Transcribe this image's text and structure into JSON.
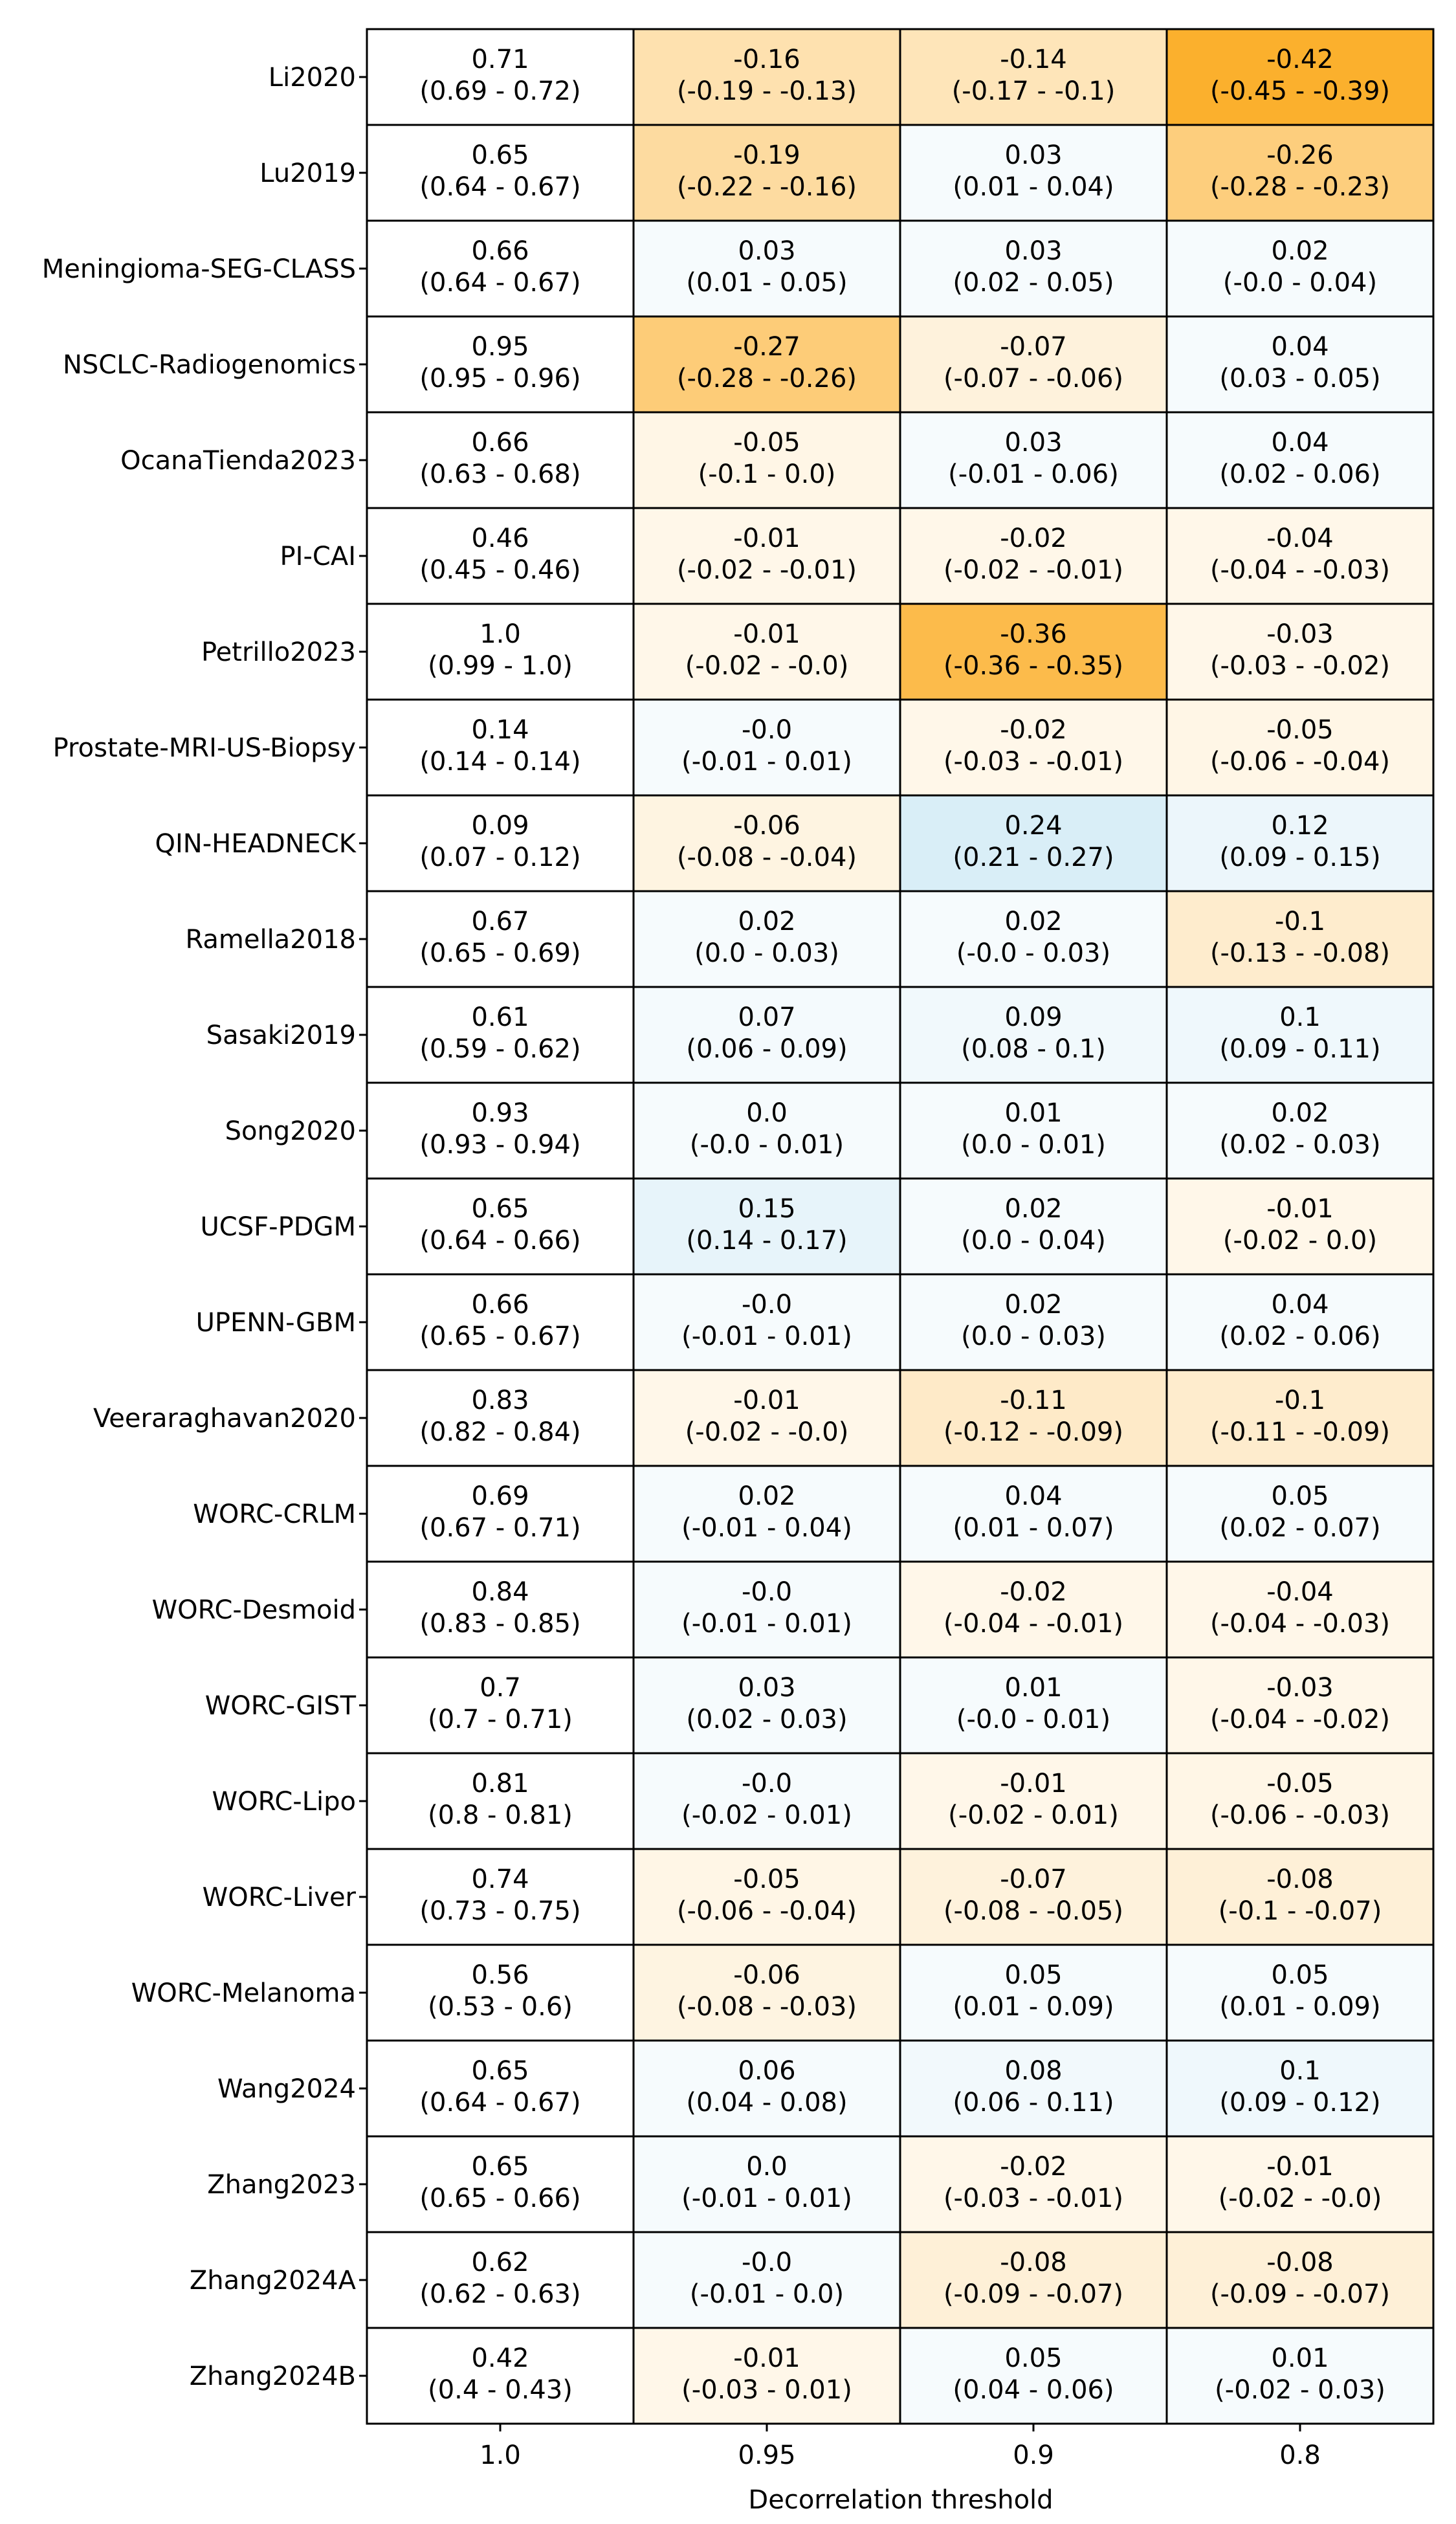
{
  "chart_data": {
    "type": "heatmap",
    "title": "",
    "xlabel": "Decorrelation threshold",
    "ylabel": "",
    "x_categories": [
      "1.0",
      "0.95",
      "0.9",
      "0.8"
    ],
    "y_categories": [
      "Li2020",
      "Lu2019",
      "Meningioma-SEG-CLASS",
      "NSCLC-Radiogenomics",
      "OcanaTienda2023",
      "PI-CAI",
      "Petrillo2023",
      "Prostate-MRI-US-Biopsy",
      "QIN-HEADNECK",
      "Ramella2018",
      "Sasaki2019",
      "Song2020",
      "UCSF-PDGM",
      "UPENN-GBM",
      "Veeraraghavan2020",
      "WORC-CRLM",
      "WORC-Desmoid",
      "WORC-GIST",
      "WORC-Lipo",
      "WORC-Liver",
      "WORC-Melanoma",
      "Wang2024",
      "Zhang2023",
      "Zhang2024A",
      "Zhang2024B"
    ],
    "color_scale": {
      "positive": "#b8dff0",
      "negative": "#fbaa1e",
      "baseline_column": "#ffffff",
      "abs_max": 0.45
    },
    "rows": [
      {
        "cells": [
          {
            "value": 0.71,
            "ci": "(0.69 - 0.72)",
            "label": "0.71"
          },
          {
            "value": -0.16,
            "ci": "(-0.19 - -0.13)",
            "label": "-0.16"
          },
          {
            "value": -0.14,
            "ci": "(-0.17 - -0.1)",
            "label": "-0.14"
          },
          {
            "value": -0.42,
            "ci": "(-0.45 - -0.39)",
            "label": "-0.42"
          }
        ]
      },
      {
        "cells": [
          {
            "value": 0.65,
            "ci": "(0.64 - 0.67)",
            "label": "0.65"
          },
          {
            "value": -0.19,
            "ci": "(-0.22 - -0.16)",
            "label": "-0.19"
          },
          {
            "value": 0.03,
            "ci": "(0.01 - 0.04)",
            "label": "0.03"
          },
          {
            "value": -0.26,
            "ci": "(-0.28 - -0.23)",
            "label": "-0.26"
          }
        ]
      },
      {
        "cells": [
          {
            "value": 0.66,
            "ci": "(0.64 - 0.67)",
            "label": "0.66"
          },
          {
            "value": 0.03,
            "ci": "(0.01 - 0.05)",
            "label": "0.03"
          },
          {
            "value": 0.03,
            "ci": "(0.02 - 0.05)",
            "label": "0.03"
          },
          {
            "value": 0.02,
            "ci": "(-0.0 - 0.04)",
            "label": "0.02"
          }
        ]
      },
      {
        "cells": [
          {
            "value": 0.95,
            "ci": "(0.95 - 0.96)",
            "label": "0.95"
          },
          {
            "value": -0.27,
            "ci": "(-0.28 - -0.26)",
            "label": "-0.27"
          },
          {
            "value": -0.07,
            "ci": "(-0.07 - -0.06)",
            "label": "-0.07"
          },
          {
            "value": 0.04,
            "ci": "(0.03 - 0.05)",
            "label": "0.04"
          }
        ]
      },
      {
        "cells": [
          {
            "value": 0.66,
            "ci": "(0.63 - 0.68)",
            "label": "0.66"
          },
          {
            "value": -0.05,
            "ci": "(-0.1 - 0.0)",
            "label": "-0.05"
          },
          {
            "value": 0.03,
            "ci": "(-0.01 - 0.06)",
            "label": "0.03"
          },
          {
            "value": 0.04,
            "ci": "(0.02 - 0.06)",
            "label": "0.04"
          }
        ]
      },
      {
        "cells": [
          {
            "value": 0.46,
            "ci": "(0.45 - 0.46)",
            "label": "0.46"
          },
          {
            "value": -0.01,
            "ci": "(-0.02 - -0.01)",
            "label": "-0.01"
          },
          {
            "value": -0.02,
            "ci": "(-0.02 - -0.01)",
            "label": "-0.02"
          },
          {
            "value": -0.04,
            "ci": "(-0.04 - -0.03)",
            "label": "-0.04"
          }
        ]
      },
      {
        "cells": [
          {
            "value": 1.0,
            "ci": "(0.99 - 1.0)",
            "label": "1.0"
          },
          {
            "value": -0.01,
            "ci": "(-0.02 - -0.0)",
            "label": "-0.01"
          },
          {
            "value": -0.36,
            "ci": "(-0.36 - -0.35)",
            "label": "-0.36"
          },
          {
            "value": -0.03,
            "ci": "(-0.03 - -0.02)",
            "label": "-0.03"
          }
        ]
      },
      {
        "cells": [
          {
            "value": 0.14,
            "ci": "(0.14 - 0.14)",
            "label": "0.14"
          },
          {
            "value": 0.0,
            "ci": "(-0.01 - 0.01)",
            "label": "-0.0"
          },
          {
            "value": -0.02,
            "ci": "(-0.03 - -0.01)",
            "label": "-0.02"
          },
          {
            "value": -0.05,
            "ci": "(-0.06 - -0.04)",
            "label": "-0.05"
          }
        ]
      },
      {
        "cells": [
          {
            "value": 0.09,
            "ci": "(0.07 - 0.12)",
            "label": "0.09"
          },
          {
            "value": -0.06,
            "ci": "(-0.08 - -0.04)",
            "label": "-0.06"
          },
          {
            "value": 0.24,
            "ci": "(0.21 - 0.27)",
            "label": "0.24"
          },
          {
            "value": 0.12,
            "ci": "(0.09 - 0.15)",
            "label": "0.12"
          }
        ]
      },
      {
        "cells": [
          {
            "value": 0.67,
            "ci": "(0.65 - 0.69)",
            "label": "0.67"
          },
          {
            "value": 0.02,
            "ci": "(0.0 - 0.03)",
            "label": "0.02"
          },
          {
            "value": 0.02,
            "ci": "(-0.0 - 0.03)",
            "label": "0.02"
          },
          {
            "value": -0.1,
            "ci": "(-0.13 - -0.08)",
            "label": "-0.1"
          }
        ]
      },
      {
        "cells": [
          {
            "value": 0.61,
            "ci": "(0.59 - 0.62)",
            "label": "0.61"
          },
          {
            "value": 0.07,
            "ci": "(0.06 - 0.09)",
            "label": "0.07"
          },
          {
            "value": 0.09,
            "ci": "(0.08 - 0.1)",
            "label": "0.09"
          },
          {
            "value": 0.1,
            "ci": "(0.09 - 0.11)",
            "label": "0.1"
          }
        ]
      },
      {
        "cells": [
          {
            "value": 0.93,
            "ci": "(0.93 - 0.94)",
            "label": "0.93"
          },
          {
            "value": 0.0,
            "ci": "(-0.0 - 0.01)",
            "label": "0.0"
          },
          {
            "value": 0.01,
            "ci": "(0.0 - 0.01)",
            "label": "0.01"
          },
          {
            "value": 0.02,
            "ci": "(0.02 - 0.03)",
            "label": "0.02"
          }
        ]
      },
      {
        "cells": [
          {
            "value": 0.65,
            "ci": "(0.64 - 0.66)",
            "label": "0.65"
          },
          {
            "value": 0.15,
            "ci": "(0.14 - 0.17)",
            "label": "0.15"
          },
          {
            "value": 0.02,
            "ci": "(0.0 - 0.04)",
            "label": "0.02"
          },
          {
            "value": -0.01,
            "ci": "(-0.02 - 0.0)",
            "label": "-0.01"
          }
        ]
      },
      {
        "cells": [
          {
            "value": 0.66,
            "ci": "(0.65 - 0.67)",
            "label": "0.66"
          },
          {
            "value": 0.0,
            "ci": "(-0.01 - 0.01)",
            "label": "-0.0"
          },
          {
            "value": 0.02,
            "ci": "(0.0 - 0.03)",
            "label": "0.02"
          },
          {
            "value": 0.04,
            "ci": "(0.02 - 0.06)",
            "label": "0.04"
          }
        ]
      },
      {
        "cells": [
          {
            "value": 0.83,
            "ci": "(0.82 - 0.84)",
            "label": "0.83"
          },
          {
            "value": -0.01,
            "ci": "(-0.02 - -0.0)",
            "label": "-0.01"
          },
          {
            "value": -0.11,
            "ci": "(-0.12 - -0.09)",
            "label": "-0.11"
          },
          {
            "value": -0.1,
            "ci": "(-0.11 - -0.09)",
            "label": "-0.1"
          }
        ]
      },
      {
        "cells": [
          {
            "value": 0.69,
            "ci": "(0.67 - 0.71)",
            "label": "0.69"
          },
          {
            "value": 0.02,
            "ci": "(-0.01 - 0.04)",
            "label": "0.02"
          },
          {
            "value": 0.04,
            "ci": "(0.01 - 0.07)",
            "label": "0.04"
          },
          {
            "value": 0.05,
            "ci": "(0.02 - 0.07)",
            "label": "0.05"
          }
        ]
      },
      {
        "cells": [
          {
            "value": 0.84,
            "ci": "(0.83 - 0.85)",
            "label": "0.84"
          },
          {
            "value": 0.0,
            "ci": "(-0.01 - 0.01)",
            "label": "-0.0"
          },
          {
            "value": -0.02,
            "ci": "(-0.04 - -0.01)",
            "label": "-0.02"
          },
          {
            "value": -0.04,
            "ci": "(-0.04 - -0.03)",
            "label": "-0.04"
          }
        ]
      },
      {
        "cells": [
          {
            "value": 0.7,
            "ci": "(0.7 - 0.71)",
            "label": "0.7"
          },
          {
            "value": 0.03,
            "ci": "(0.02 - 0.03)",
            "label": "0.03"
          },
          {
            "value": 0.01,
            "ci": "(-0.0 - 0.01)",
            "label": "0.01"
          },
          {
            "value": -0.03,
            "ci": "(-0.04 - -0.02)",
            "label": "-0.03"
          }
        ]
      },
      {
        "cells": [
          {
            "value": 0.81,
            "ci": "(0.8 - 0.81)",
            "label": "0.81"
          },
          {
            "value": 0.0,
            "ci": "(-0.02 - 0.01)",
            "label": "-0.0"
          },
          {
            "value": -0.01,
            "ci": "(-0.02 - 0.01)",
            "label": "-0.01"
          },
          {
            "value": -0.05,
            "ci": "(-0.06 - -0.03)",
            "label": "-0.05"
          }
        ]
      },
      {
        "cells": [
          {
            "value": 0.74,
            "ci": "(0.73 - 0.75)",
            "label": "0.74"
          },
          {
            "value": -0.05,
            "ci": "(-0.06 - -0.04)",
            "label": "-0.05"
          },
          {
            "value": -0.07,
            "ci": "(-0.08 - -0.05)",
            "label": "-0.07"
          },
          {
            "value": -0.08,
            "ci": "(-0.1 - -0.07)",
            "label": "-0.08"
          }
        ]
      },
      {
        "cells": [
          {
            "value": 0.56,
            "ci": "(0.53 - 0.6)",
            "label": "0.56"
          },
          {
            "value": -0.06,
            "ci": "(-0.08 - -0.03)",
            "label": "-0.06"
          },
          {
            "value": 0.05,
            "ci": "(0.01 - 0.09)",
            "label": "0.05"
          },
          {
            "value": 0.05,
            "ci": "(0.01 - 0.09)",
            "label": "0.05"
          }
        ]
      },
      {
        "cells": [
          {
            "value": 0.65,
            "ci": "(0.64 - 0.67)",
            "label": "0.65"
          },
          {
            "value": 0.06,
            "ci": "(0.04 - 0.08)",
            "label": "0.06"
          },
          {
            "value": 0.08,
            "ci": "(0.06 - 0.11)",
            "label": "0.08"
          },
          {
            "value": 0.1,
            "ci": "(0.09 - 0.12)",
            "label": "0.1"
          }
        ]
      },
      {
        "cells": [
          {
            "value": 0.65,
            "ci": "(0.65 - 0.66)",
            "label": "0.65"
          },
          {
            "value": 0.0,
            "ci": "(-0.01 - 0.01)",
            "label": "0.0"
          },
          {
            "value": -0.02,
            "ci": "(-0.03 - -0.01)",
            "label": "-0.02"
          },
          {
            "value": -0.01,
            "ci": "(-0.02 - -0.0)",
            "label": "-0.01"
          }
        ]
      },
      {
        "cells": [
          {
            "value": 0.62,
            "ci": "(0.62 - 0.63)",
            "label": "0.62"
          },
          {
            "value": 0.0,
            "ci": "(-0.01 - 0.0)",
            "label": "-0.0"
          },
          {
            "value": -0.08,
            "ci": "(-0.09 - -0.07)",
            "label": "-0.08"
          },
          {
            "value": -0.08,
            "ci": "(-0.09 - -0.07)",
            "label": "-0.08"
          }
        ]
      },
      {
        "cells": [
          {
            "value": 0.42,
            "ci": "(0.4 - 0.43)",
            "label": "0.42"
          },
          {
            "value": -0.01,
            "ci": "(-0.03 - 0.01)",
            "label": "-0.01"
          },
          {
            "value": 0.05,
            "ci": "(0.04 - 0.06)",
            "label": "0.05"
          },
          {
            "value": 0.01,
            "ci": "(-0.02 - 0.03)",
            "label": "0.01"
          }
        ]
      }
    ]
  }
}
